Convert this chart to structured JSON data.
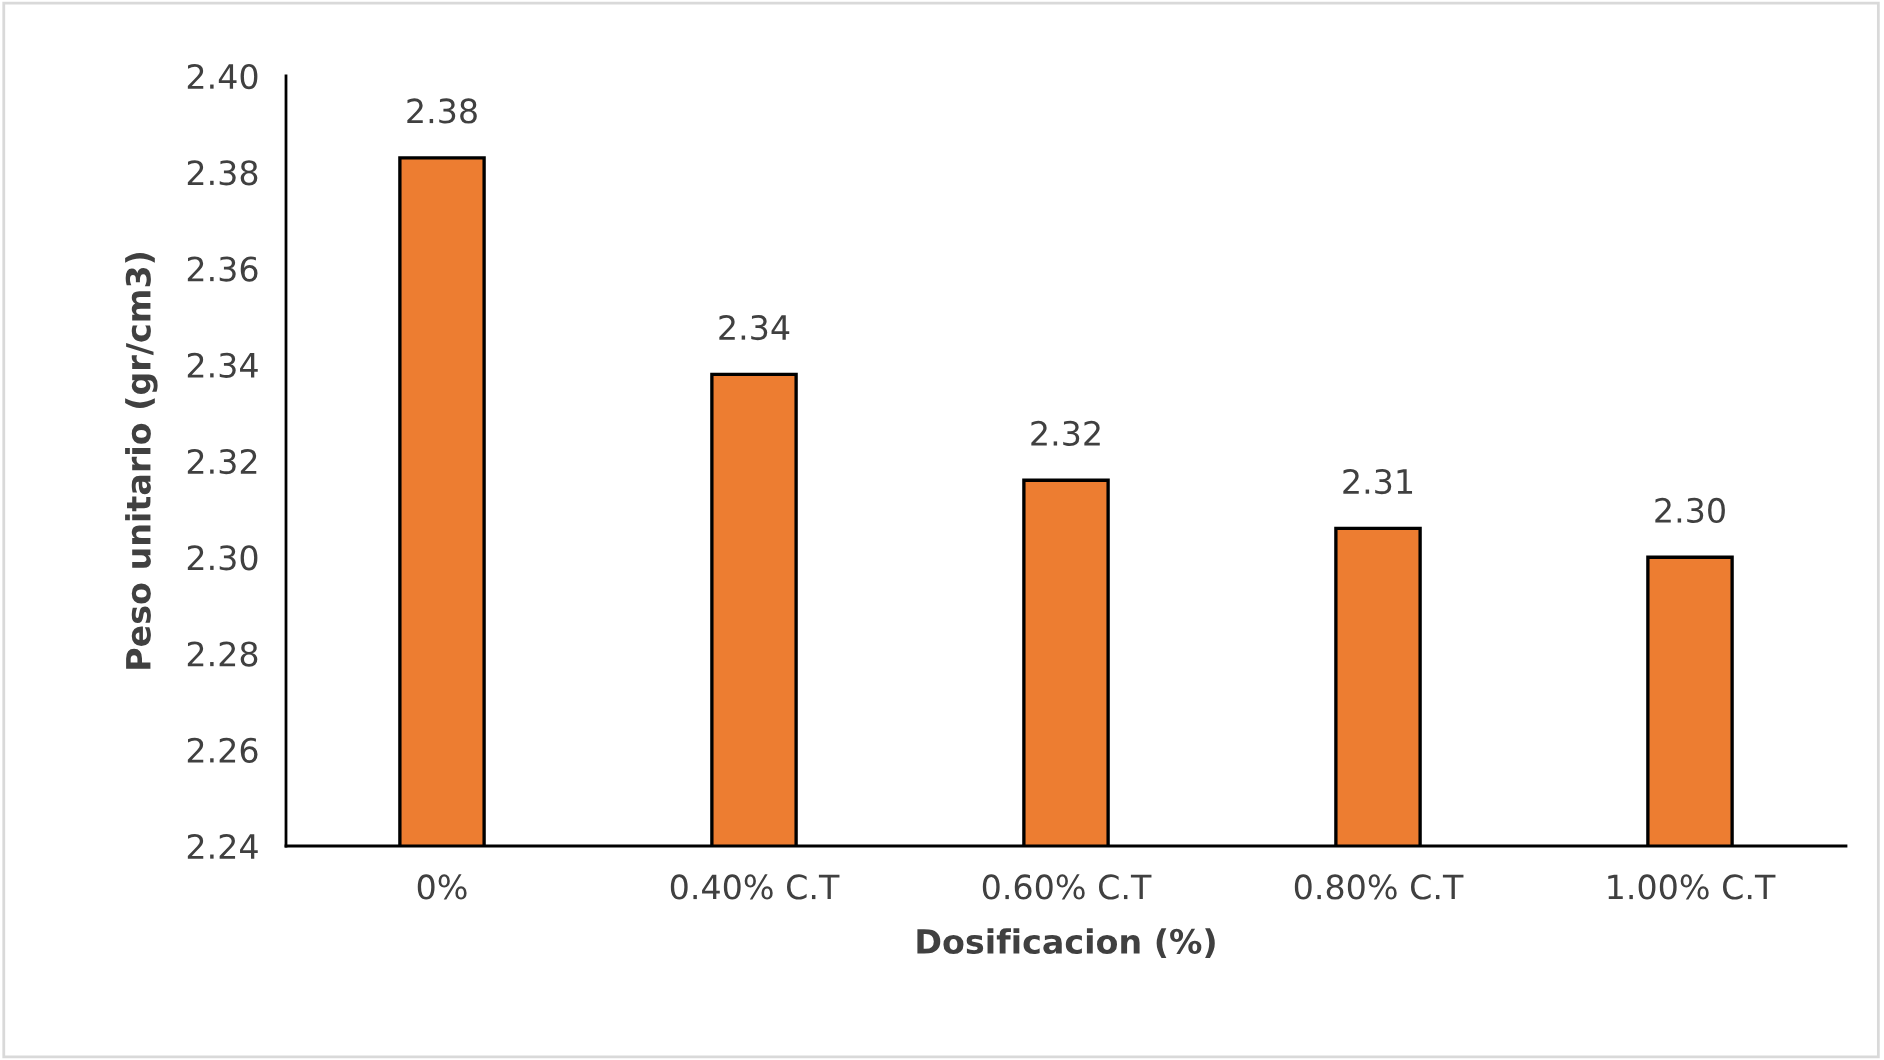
{
  "chart_data": {
    "type": "bar",
    "categories": [
      "0%",
      "0.40% C.T",
      "0.60% C.T",
      "0.80% C.T",
      "1.00% C.T"
    ],
    "values": [
      2.383,
      2.338,
      2.316,
      2.306,
      2.3
    ],
    "value_labels": [
      "2.38",
      "2.34",
      "2.32",
      "2.31",
      "2.30"
    ],
    "color": "#ed7d31",
    "xlabel": "Dosificacion (%)",
    "ylabel": "Peso unitario (gr/cm3)",
    "ylim": [
      2.24,
      2.4
    ],
    "yticks": [
      {
        "value": 2.24,
        "label": "2.24"
      },
      {
        "value": 2.26,
        "label": "2.26"
      },
      {
        "value": 2.28,
        "label": "2.28"
      },
      {
        "value": 2.3,
        "label": "2.30"
      },
      {
        "value": 2.32,
        "label": "2.32"
      },
      {
        "value": 2.34,
        "label": "2.34"
      },
      {
        "value": 2.36,
        "label": "2.36"
      },
      {
        "value": 2.38,
        "label": "2.38"
      },
      {
        "value": 2.4,
        "label": "2.40"
      }
    ],
    "grid": false,
    "legend": false
  }
}
